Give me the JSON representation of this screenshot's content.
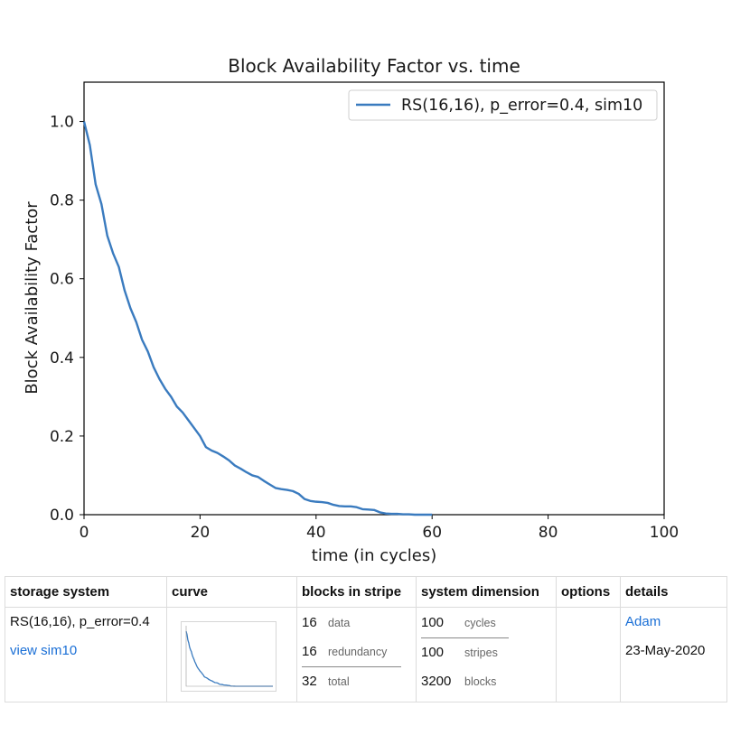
{
  "chart_data": {
    "type": "line",
    "title": "Block Availability Factor vs. time",
    "xlabel": "time (in cycles)",
    "ylabel": "Block Availability Factor",
    "xlim": [
      0,
      100
    ],
    "ylim": [
      0,
      1.1
    ],
    "xticks": [
      0,
      20,
      40,
      60,
      80,
      100
    ],
    "yticks": [
      0.0,
      0.2,
      0.4,
      0.6,
      0.8,
      1.0
    ],
    "xtick_labels": [
      "0",
      "20",
      "40",
      "60",
      "80",
      "100"
    ],
    "ytick_labels": [
      "0.0",
      "0.2",
      "0.4",
      "0.6",
      "0.8",
      "1.0"
    ],
    "legend_position": "top-right",
    "grid": false,
    "series": [
      {
        "name": "RS(16,16), p_error=0.4, sim10",
        "color": "#3a7bbf",
        "x": [
          0,
          1,
          2,
          3,
          4,
          5,
          6,
          7,
          8,
          9,
          10,
          11,
          12,
          13,
          14,
          15,
          16,
          17,
          18,
          19,
          20,
          21,
          22,
          23,
          24,
          25,
          26,
          27,
          28,
          29,
          30,
          31,
          32,
          33,
          34,
          35,
          36,
          37,
          38,
          39,
          40,
          41,
          42,
          43,
          44,
          45,
          46,
          47,
          48,
          49,
          50,
          51,
          52,
          53,
          54,
          55,
          56,
          57,
          58,
          59,
          60
        ],
        "y": [
          1.0,
          0.94,
          0.84,
          0.79,
          0.71,
          0.665,
          0.63,
          0.57,
          0.525,
          0.49,
          0.445,
          0.415,
          0.375,
          0.345,
          0.32,
          0.3,
          0.275,
          0.26,
          0.24,
          0.22,
          0.2,
          0.172,
          0.163,
          0.157,
          0.148,
          0.138,
          0.125,
          0.117,
          0.108,
          0.1,
          0.096,
          0.086,
          0.077,
          0.068,
          0.065,
          0.063,
          0.06,
          0.053,
          0.04,
          0.035,
          0.033,
          0.032,
          0.03,
          0.025,
          0.022,
          0.021,
          0.021,
          0.019,
          0.014,
          0.013,
          0.012,
          0.006,
          0.003,
          0.002,
          0.002,
          0.001,
          0.001,
          0.0,
          0.0,
          0.0,
          0.0
        ]
      }
    ]
  },
  "table": {
    "headers": [
      "storage system",
      "curve",
      "blocks in stripe",
      "system dimension",
      "options",
      "details"
    ],
    "storage_system": "RS(16,16), p_error=0.4",
    "view_link": "view sim10",
    "blocks": [
      {
        "num": "16",
        "label": "data"
      },
      {
        "num": "16",
        "label": "redundancy"
      },
      {
        "num": "32",
        "label": "total"
      }
    ],
    "dimension": [
      {
        "num": "100",
        "label": "cycles"
      },
      {
        "num": "100",
        "label": "stripes"
      },
      {
        "num": "3200",
        "label": "blocks"
      }
    ],
    "details_author": "Adam",
    "details_date": "23-May-2020"
  }
}
